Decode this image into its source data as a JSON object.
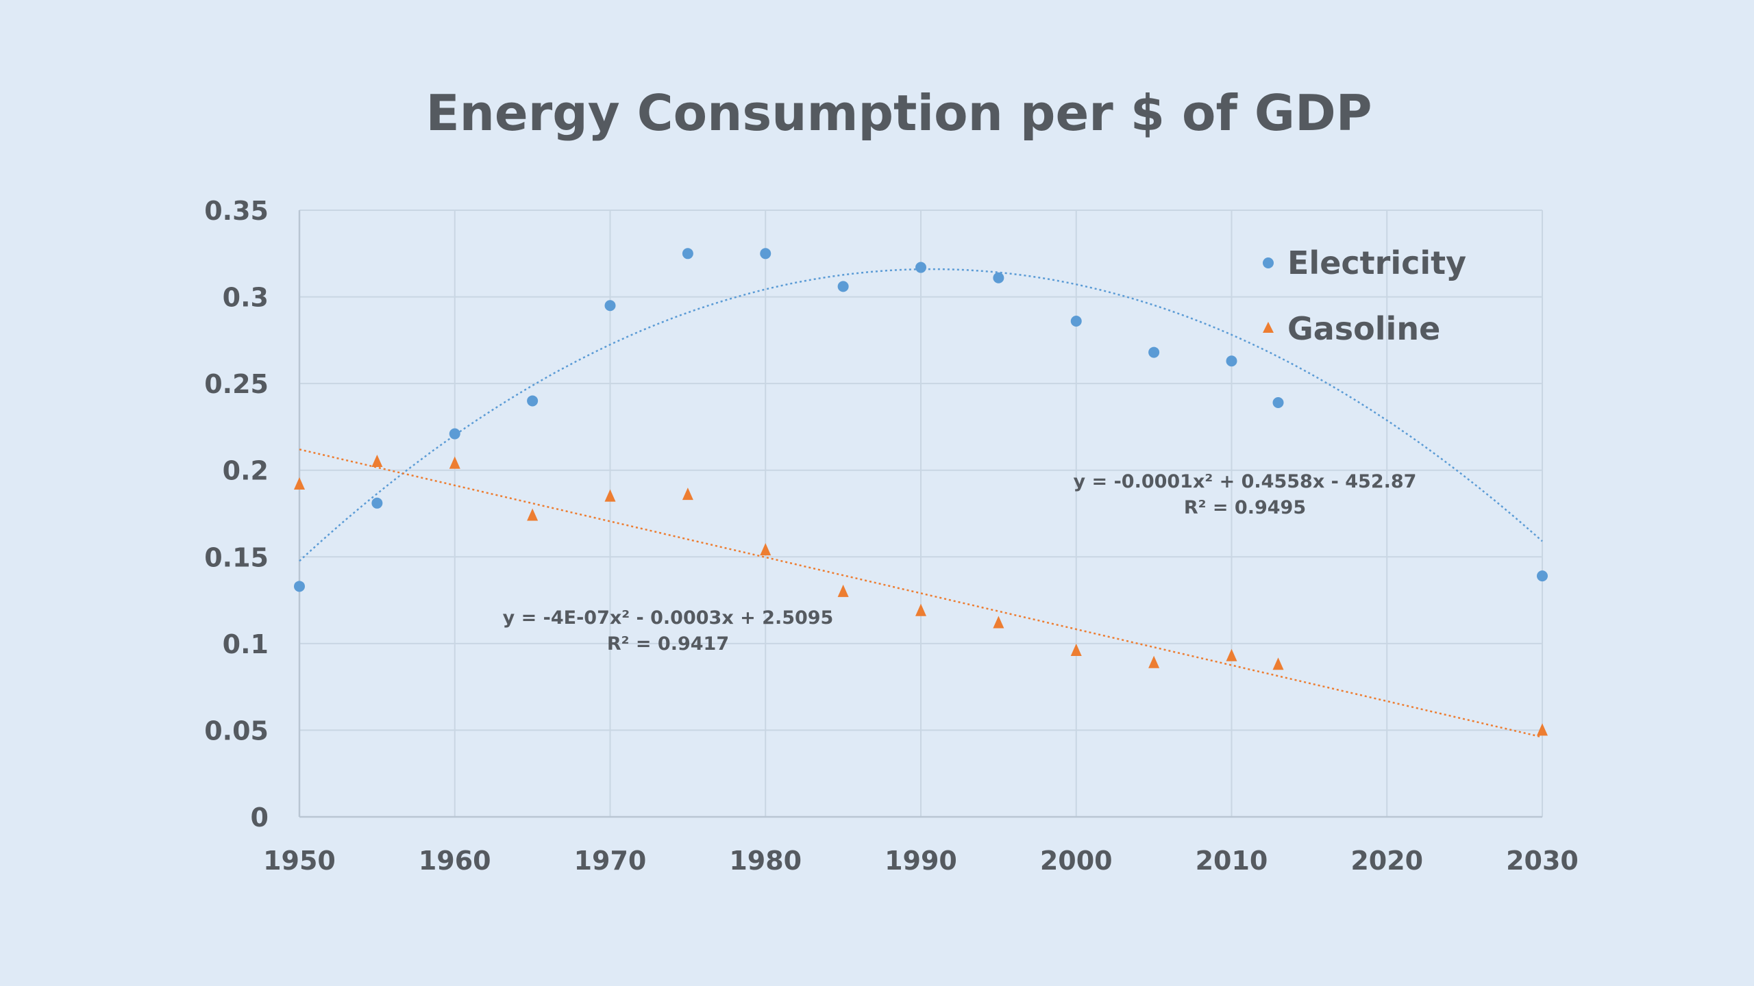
{
  "chart_data": {
    "type": "scatter",
    "title": "Energy Consumption per $ of GDP",
    "xlabel": "",
    "ylabel": "",
    "xlim": [
      1950,
      2030
    ],
    "ylim": [
      0,
      0.35
    ],
    "x_ticks": [
      "1950",
      "1960",
      "1970",
      "1980",
      "1990",
      "2000",
      "2010",
      "2020",
      "2030"
    ],
    "y_ticks": [
      "0",
      "0.05",
      "0.1",
      "0.15",
      "0.2",
      "0.25",
      "0.3",
      "0.35"
    ],
    "grid": true,
    "legend_position": "top-right",
    "series": [
      {
        "name": "Electricity",
        "marker": "circle",
        "color": "#5b9bd5",
        "x": [
          1950,
          1955,
          1960,
          1965,
          1970,
          1975,
          1980,
          1985,
          1990,
          1995,
          2000,
          2005,
          2010,
          2013,
          2030
        ],
        "y": [
          0.133,
          0.181,
          0.221,
          0.24,
          0.295,
          0.325,
          0.325,
          0.306,
          0.317,
          0.311,
          0.286,
          0.268,
          0.263,
          0.239,
          0.139
        ],
        "trendline": {
          "type": "polynomial",
          "a": -0.0001,
          "b": 0.4558,
          "c": -452.87,
          "vertex": [
            1990.7,
            0.316
          ],
          "equation": "y = -0.0001x² + 0.4558x - 452.87",
          "r_squared": "R² = 0.9495"
        }
      },
      {
        "name": "Gasoline",
        "marker": "triangle",
        "color": "#ed7d31",
        "x": [
          1950,
          1955,
          1960,
          1965,
          1970,
          1975,
          1980,
          1985,
          1990,
          1995,
          2000,
          2005,
          2010,
          2013,
          2030
        ],
        "y": [
          0.192,
          0.205,
          0.204,
          0.174,
          0.185,
          0.186,
          0.154,
          0.13,
          0.119,
          0.112,
          0.096,
          0.089,
          0.093,
          0.088,
          0.05
        ],
        "trendline": {
          "type": "polynomial",
          "a": -4e-07,
          "b": -0.0003,
          "c": 2.5095,
          "equation": "y = -4E-07x² - 0.0003x + 2.5095",
          "r_squared": "R² = 0.9417"
        }
      }
    ]
  }
}
